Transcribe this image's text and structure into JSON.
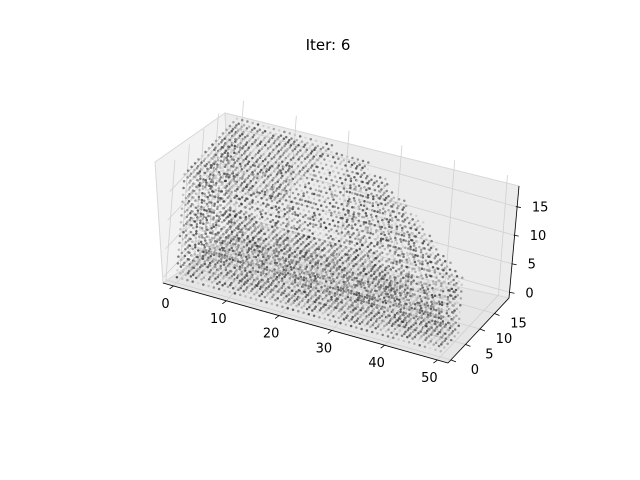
{
  "chart_data": {
    "type": "scatter",
    "projection": "3d",
    "title": "Iter: 6",
    "xlabel": "",
    "ylabel": "",
    "zlabel": "",
    "xlim": [
      -2,
      52
    ],
    "ylim": [
      -1,
      20
    ],
    "zlim": [
      -1,
      20
    ],
    "x_ticks": [
      0,
      10,
      20,
      30,
      40,
      50
    ],
    "y_ticks": [
      0,
      5,
      10,
      15
    ],
    "z_ticks": [
      0,
      5,
      10,
      15
    ],
    "grid": true,
    "legend": "none",
    "colormap": "grayscale",
    "series": [
      {
        "marker_color": "#000000",
        "points_description_ranges": {
          "x": [
            0,
            50
          ],
          "y": [
            0,
            20
          ],
          "z": [
            0,
            20
          ]
        }
      }
    ]
  }
}
